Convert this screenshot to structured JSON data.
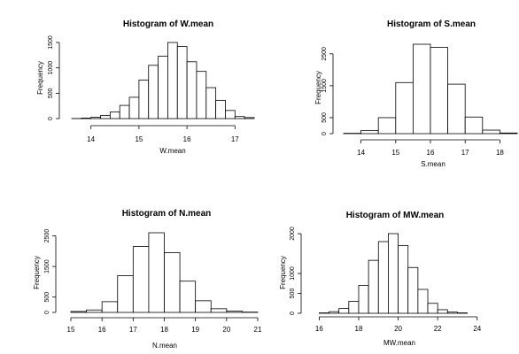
{
  "chart_data": [
    {
      "type": "bar",
      "title": "Histogram of W.mean",
      "xlabel": "W.mean",
      "ylabel": "Frequency",
      "bin_edges": [
        13.6,
        13.8,
        14.0,
        14.2,
        14.4,
        14.6,
        14.8,
        15.0,
        15.2,
        15.4,
        15.6,
        15.8,
        16.0,
        16.2,
        16.4,
        16.6,
        16.8,
        17.0,
        17.2,
        17.4
      ],
      "values": [
        2,
        10,
        25,
        60,
        130,
        260,
        420,
        760,
        1050,
        1230,
        1500,
        1420,
        1120,
        930,
        610,
        360,
        160,
        40,
        20
      ],
      "x_ticks": [
        "14",
        "15",
        "16",
        "17"
      ],
      "y_ticks": [
        "0",
        "500",
        "1000",
        "1500"
      ],
      "xlim": [
        13.6,
        17.4
      ],
      "ylim": [
        0,
        1500
      ],
      "grid": false
    },
    {
      "type": "bar",
      "title": "Histogram of S.mean",
      "xlabel": "S.mean",
      "ylabel": "Frequency",
      "bin_edges": [
        13.5,
        14.0,
        14.5,
        15.0,
        15.5,
        16.0,
        16.5,
        17.0,
        17.5,
        18.0,
        18.5
      ],
      "values": [
        10,
        100,
        500,
        1600,
        2800,
        2700,
        1550,
        520,
        110,
        20
      ],
      "x_ticks": [
        "14",
        "15",
        "16",
        "17",
        "18"
      ],
      "y_ticks": [
        "0",
        "500",
        "1500",
        "2500"
      ],
      "xlim": [
        13.5,
        18.5
      ],
      "ylim": [
        0,
        2800
      ],
      "grid": false
    },
    {
      "type": "bar",
      "title": "Histogram of N.mean",
      "xlabel": "N.mean",
      "ylabel": "Frequency",
      "bin_edges": [
        15.0,
        15.5,
        16.0,
        16.5,
        17.0,
        17.5,
        18.0,
        18.5,
        19.0,
        19.5,
        20.0,
        20.5,
        21.0
      ],
      "values": [
        30,
        80,
        350,
        1200,
        2150,
        2600,
        1950,
        1020,
        380,
        120,
        40,
        10
      ],
      "x_ticks": [
        "15",
        "16",
        "17",
        "18",
        "19",
        "20",
        "21"
      ],
      "y_ticks": [
        "0",
        "500",
        "1500",
        "2500"
      ],
      "xlim": [
        15,
        21
      ],
      "ylim": [
        0,
        2600
      ],
      "grid": false
    },
    {
      "type": "bar",
      "title": "Histogram of MW.mean",
      "xlabel": "MW.mean",
      "ylabel": "Frequency",
      "bin_edges": [
        16.0,
        16.5,
        17.0,
        17.5,
        18.0,
        18.5,
        19.0,
        19.5,
        20.0,
        20.5,
        21.0,
        21.5,
        22.0,
        22.5,
        23.0,
        23.5
      ],
      "values": [
        10,
        40,
        120,
        300,
        700,
        1330,
        1800,
        2000,
        1700,
        1150,
        600,
        250,
        90,
        30,
        10
      ],
      "x_ticks": [
        "16",
        "18",
        "20",
        "22",
        "24"
      ],
      "y_ticks": [
        "0",
        "500",
        "1000",
        "2000"
      ],
      "xlim": [
        15.4,
        24.1
      ],
      "ylim": [
        0,
        2000
      ],
      "grid": false
    }
  ]
}
